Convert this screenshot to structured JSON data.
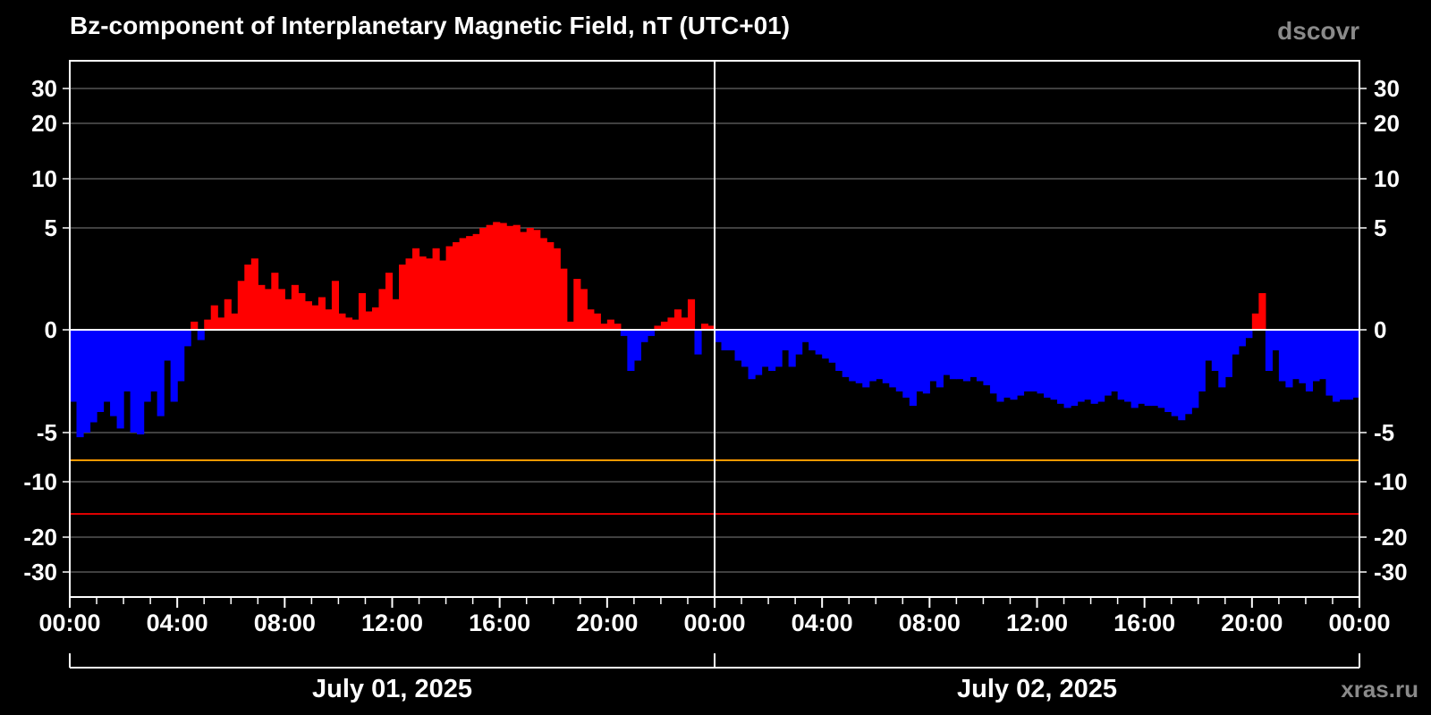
{
  "chart_data": {
    "type": "bar",
    "title": "Bz-component of Interplanetary Magnetic Field, nT (UTC+01)",
    "source_label": "dscovr",
    "credit": "xras.ru",
    "y_scale": "nonlinear (expanded near zero)",
    "ylim": [
      -35,
      35
    ],
    "y_ticks": [
      {
        "v": 30,
        "label": "30"
      },
      {
        "v": 20,
        "label": "20"
      },
      {
        "v": 10,
        "label": "10"
      },
      {
        "v": 5,
        "label": "5"
      },
      {
        "v": 0,
        "label": "0"
      },
      {
        "v": -5,
        "label": "-5"
      },
      {
        "v": -10,
        "label": "-10"
      },
      {
        "v": -20,
        "label": "-20"
      },
      {
        "v": -30,
        "label": "-30"
      }
    ],
    "x_range_hours": [
      0,
      48
    ],
    "x_tick_labels": [
      "00:00",
      "04:00",
      "08:00",
      "12:00",
      "16:00",
      "20:00",
      "00:00",
      "04:00",
      "08:00",
      "12:00",
      "16:00",
      "20:00",
      "00:00"
    ],
    "date_labels": [
      "July 01, 2025",
      "July 02, 2025"
    ],
    "threshold_lines": [
      {
        "value": -8,
        "color": "#ff9900"
      },
      {
        "value": -15,
        "color": "#dd0000"
      }
    ],
    "colors": {
      "positive": "#ff0000",
      "negative": "#0000ff",
      "grid": "#7f7f7f",
      "axis": "#ffffff",
      "watermark": "#8a8a8a"
    },
    "grid": true,
    "series": [
      {
        "x_hours": [
          0,
          0.25,
          0.5,
          0.75,
          1,
          1.25,
          1.5,
          1.75,
          2,
          2.25,
          2.5,
          2.75,
          3,
          3.25,
          3.5,
          3.75,
          4,
          4.25,
          4.5,
          4.75,
          5,
          5.25,
          5.5,
          5.75,
          6,
          6.25,
          6.5,
          6.75,
          7,
          7.25,
          7.5,
          7.75,
          8,
          8.25,
          8.5,
          8.75,
          9,
          9.25,
          9.5,
          9.75,
          10,
          10.25,
          10.5,
          10.75,
          11,
          11.25,
          11.5,
          11.75,
          12,
          12.25,
          12.5,
          12.75,
          13,
          13.25,
          13.5,
          13.75,
          14,
          14.25,
          14.5,
          14.75,
          15,
          15.25,
          15.5,
          15.75,
          16,
          16.25,
          16.5,
          16.75,
          17,
          17.25,
          17.5,
          17.75,
          18,
          18.25,
          18.5,
          18.75,
          19,
          19.25,
          19.5,
          19.75,
          20,
          20.25,
          20.5,
          20.75,
          21,
          21.25,
          21.5,
          21.75,
          22,
          22.25,
          22.5,
          22.75,
          23,
          23.25,
          23.5,
          23.75,
          24,
          24.25,
          24.5,
          24.75,
          25,
          25.25,
          25.5,
          25.75,
          26,
          26.25,
          26.5,
          26.75,
          27,
          27.25,
          27.5,
          27.75,
          28,
          28.25,
          28.5,
          28.75,
          29,
          29.25,
          29.5,
          29.75,
          30,
          30.25,
          30.5,
          30.75,
          31,
          31.25,
          31.5,
          31.75,
          32,
          32.25,
          32.5,
          32.75,
          33,
          33.25,
          33.5,
          33.75,
          34,
          34.25,
          34.5,
          34.75,
          35,
          35.25,
          35.5,
          35.75,
          36,
          36.25,
          36.5,
          36.75,
          37,
          37.25,
          37.5,
          37.75,
          38,
          38.25,
          38.5,
          38.75,
          39,
          39.25,
          39.5,
          39.75,
          40,
          40.25,
          40.5,
          40.75,
          41,
          41.25,
          41.5,
          41.75,
          42,
          42.25,
          42.5,
          42.75,
          43,
          43.25,
          43.5,
          43.75,
          44,
          44.25,
          44.5,
          44.75,
          45,
          45.25,
          45.5,
          45.75,
          46,
          46.25,
          46.5,
          46.75,
          47,
          47.25,
          47.5,
          47.75
        ],
        "bz": [
          -3.5,
          -5.5,
          -5.0,
          -4.5,
          -4.0,
          -3.5,
          -4.2,
          -4.8,
          -3.0,
          -5.0,
          -5.2,
          -3.5,
          -3.0,
          -4.2,
          -1.5,
          -3.5,
          -2.5,
          -0.8,
          0.4,
          -0.5,
          0.5,
          1.2,
          0.6,
          1.5,
          0.8,
          2.4,
          3.2,
          3.5,
          2.2,
          2.0,
          2.8,
          2.0,
          1.5,
          2.2,
          1.8,
          1.4,
          1.2,
          1.6,
          1.0,
          2.4,
          0.8,
          0.6,
          0.5,
          1.8,
          0.9,
          1.1,
          2.0,
          2.8,
          1.5,
          3.2,
          3.5,
          4.0,
          3.6,
          3.5,
          4.0,
          3.4,
          4.1,
          4.3,
          4.5,
          4.6,
          4.7,
          5.0,
          5.3,
          5.6,
          5.5,
          5.2,
          5.3,
          4.8,
          5.0,
          4.9,
          4.5,
          4.3,
          4.0,
          3.0,
          0.4,
          2.5,
          2.0,
          1.0,
          0.8,
          0.3,
          0.5,
          0.3,
          -0.3,
          -2.0,
          -1.5,
          -0.6,
          -0.3,
          0.2,
          0.4,
          0.6,
          1.0,
          0.6,
          1.5,
          -1.2,
          0.3,
          0.2,
          -0.6,
          -1.0,
          -1.0,
          -1.5,
          -1.8,
          -2.4,
          -2.2,
          -1.8,
          -2.0,
          -1.8,
          -1.0,
          -1.8,
          -1.2,
          -0.6,
          -1.0,
          -1.2,
          -1.4,
          -1.6,
          -2.0,
          -2.3,
          -2.5,
          -2.6,
          -2.8,
          -2.5,
          -2.4,
          -2.6,
          -2.8,
          -3.0,
          -3.3,
          -3.7,
          -3.0,
          -3.1,
          -2.5,
          -2.8,
          -2.2,
          -2.4,
          -2.4,
          -2.5,
          -2.3,
          -2.5,
          -2.7,
          -3.1,
          -3.5,
          -3.3,
          -3.4,
          -3.2,
          -3.0,
          -3.0,
          -3.1,
          -3.3,
          -3.4,
          -3.6,
          -3.8,
          -3.7,
          -3.5,
          -3.4,
          -3.6,
          -3.5,
          -3.2,
          -3.0,
          -3.4,
          -3.5,
          -3.8,
          -3.6,
          -3.7,
          -3.7,
          -3.8,
          -4.0,
          -4.2,
          -4.4,
          -4.1,
          -3.8,
          -3.0,
          -1.5,
          -2.0,
          -2.8,
          -2.3,
          -1.2,
          -0.8,
          -0.4,
          0.8,
          1.8,
          -2.0,
          -1.0,
          -2.5,
          -2.8,
          -2.4,
          -2.6,
          -3.0,
          -2.5,
          -2.4,
          -3.2,
          -3.5,
          -3.4,
          -3.4,
          -3.3
        ]
      }
    ]
  }
}
